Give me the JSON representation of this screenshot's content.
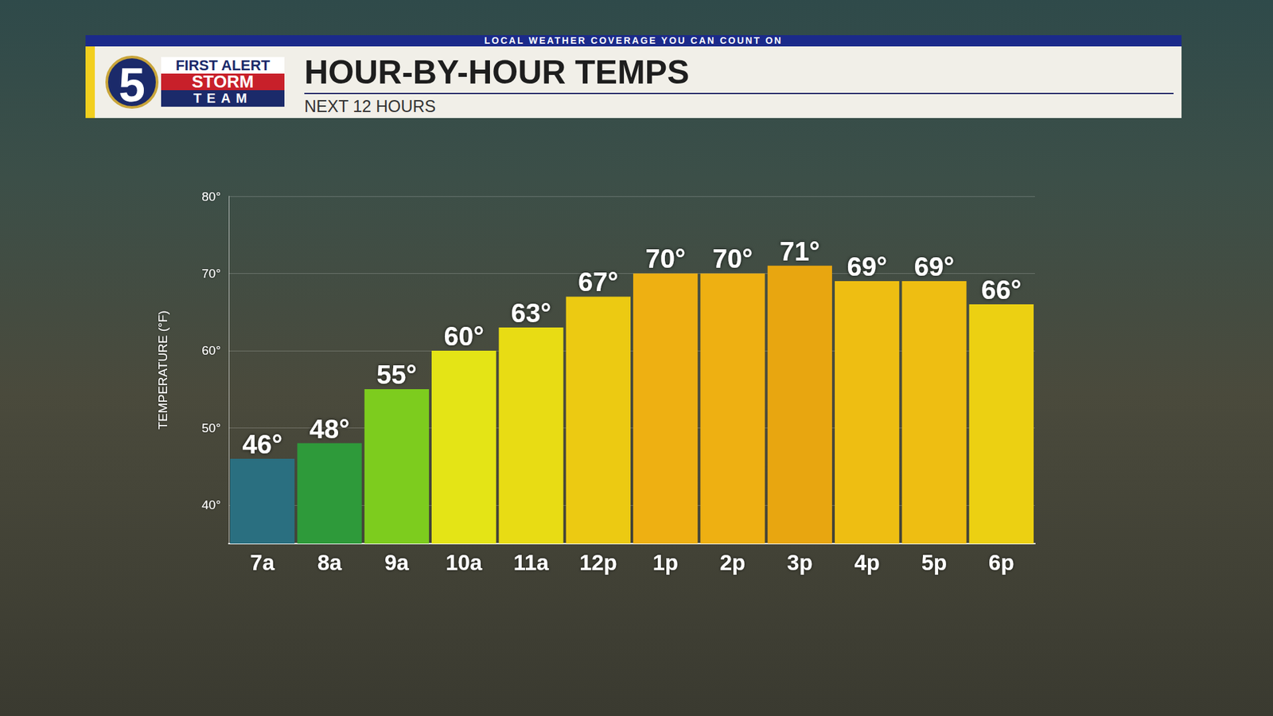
{
  "header": {
    "banner": "LOCAL WEATHER COVERAGE YOU CAN COUNT ON",
    "logo": {
      "number": "5",
      "lines": [
        "FIRST ALERT",
        "STORM",
        "TEAM"
      ]
    }
  },
  "chart_data": {
    "type": "bar",
    "title": "HOUR-BY-HOUR TEMPS",
    "subtitle": "NEXT 12 HOURS",
    "y_label": "TEMPERATURE (°F)",
    "categories": [
      "7a",
      "8a",
      "9a",
      "10a",
      "11a",
      "12p",
      "1p",
      "2p",
      "3p",
      "4p",
      "5p",
      "6p"
    ],
    "values": [
      46,
      48,
      55,
      60,
      63,
      67,
      70,
      70,
      71,
      69,
      69,
      66
    ],
    "value_labels": [
      "46°",
      "48°",
      "55°",
      "60°",
      "63°",
      "67°",
      "70°",
      "70°",
      "71°",
      "69°",
      "69°",
      "66°"
    ],
    "colors": [
      "#2a6f80",
      "#2e9a3a",
      "#7dcc1e",
      "#e4e416",
      "#e8dc14",
      "#ecca12",
      "#eeb012",
      "#eeb012",
      "#e8a610",
      "#eebe12",
      "#eebe12",
      "#ecd012"
    ],
    "ylim": [
      35,
      80
    ],
    "yticks": [
      {
        "value": 40,
        "label": "40°"
      },
      {
        "value": 50,
        "label": "50°"
      },
      {
        "value": 60,
        "label": "60°"
      },
      {
        "value": 70,
        "label": "70°"
      },
      {
        "value": 80,
        "label": "80°"
      }
    ],
    "grid": true,
    "data_labels": true
  }
}
